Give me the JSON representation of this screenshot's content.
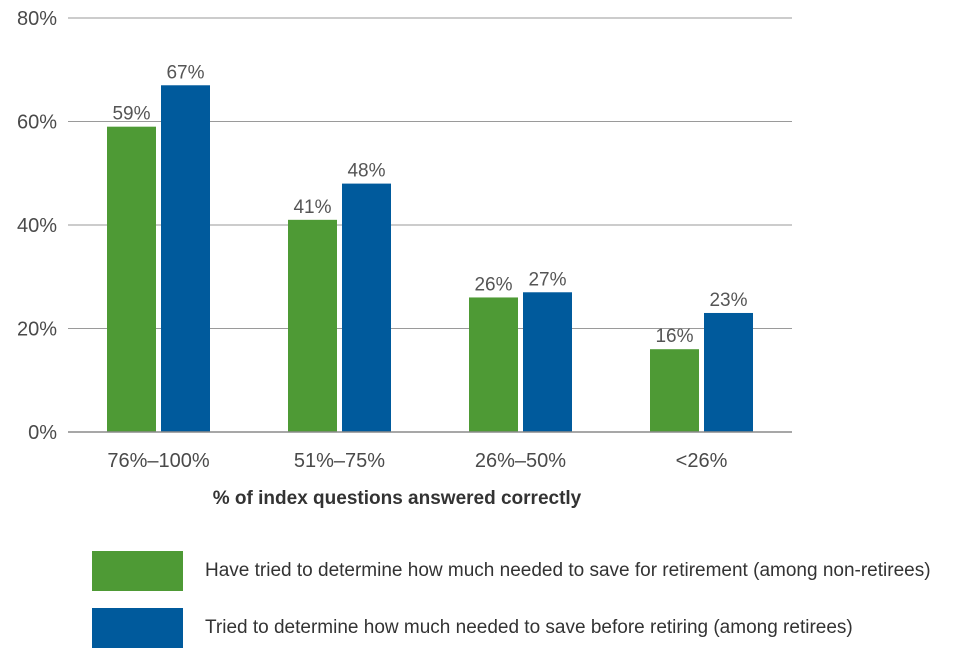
{
  "chart_data": {
    "type": "bar",
    "categories": [
      "76%–100%",
      "51%–75%",
      "26%–50%",
      "<26%"
    ],
    "series": [
      {
        "name": "Have tried to determine how much needed to save for retirement (among non-retirees)",
        "values": [
          59,
          41,
          26,
          16
        ],
        "labels": [
          "59%",
          "41%",
          "26%",
          "16%"
        ],
        "color": "#4e9a35"
      },
      {
        "name": "Tried to determine how much needed to save before retiring (among retirees)",
        "values": [
          67,
          48,
          27,
          23
        ],
        "labels": [
          "67%",
          "48%",
          "27%",
          "23%"
        ],
        "color": "#005a9c"
      }
    ],
    "xlabel": "% of index questions answered correctly",
    "ylabel": "",
    "ylim": [
      0,
      80
    ],
    "yticks": [
      0,
      20,
      40,
      60,
      80
    ],
    "ytick_labels": [
      "0%",
      "20%",
      "40%",
      "60%",
      "80%"
    ],
    "grid": true,
    "legend_position": "bottom"
  }
}
